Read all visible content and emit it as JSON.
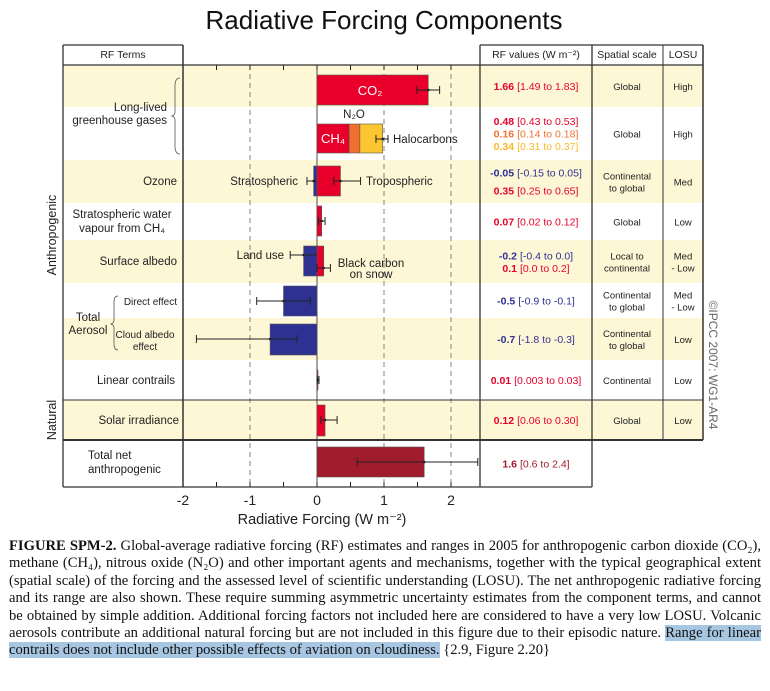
{
  "title": "Radiative Forcing Components",
  "header": {
    "rf_terms": "RF Terms",
    "rf_values": "RF values (W m⁻²)",
    "spatial_scale": "Spatial scale",
    "losu": "LOSU"
  },
  "groups": {
    "anthropogenic": "Anthropogenic",
    "natural": "Natural"
  },
  "terms": {
    "llghg": [
      "Long-lived",
      "greenhouse gases"
    ],
    "ozone": "Ozone",
    "strat_water": [
      "Stratospheric water",
      "vapour from CH₄"
    ],
    "surface_albedo": "Surface albedo",
    "total_aerosol": [
      "Total",
      "Aerosol"
    ],
    "direct_effect": "Direct effect",
    "cloud_albedo": [
      "Cloud albedo",
      "effect"
    ],
    "linear_contrails": "Linear contrails",
    "solar": "Solar irradiance",
    "total_net": [
      "Total net",
      "anthropogenic"
    ]
  },
  "bar_labels": {
    "co2": "CO₂",
    "n2o": "N₂O",
    "ch4": "CH₄",
    "halocarbons": "Halocarbons",
    "stratospheric": "Stratospheric",
    "tropospheric": "Tropospheric",
    "land_use": "Land use",
    "black_carbon": [
      "Black carbon",
      "on snow"
    ]
  },
  "table": [
    {
      "values": [
        {
          "v": "1.66",
          "r": "[1.49 to 1.83]",
          "color": "#e8002a"
        }
      ],
      "scale": [
        "Global"
      ],
      "losu": [
        "High"
      ]
    },
    {
      "values": [
        {
          "v": "0.48",
          "r": "[0.43 to 0.53]",
          "color": "#e8002a"
        },
        {
          "v": "0.16",
          "r": "[0.14 to 0.18]",
          "color": "#f07030"
        },
        {
          "v": "0.34",
          "r": "[0.31 to 0.37]",
          "color": "#fbb828"
        }
      ],
      "scale": [
        "Global"
      ],
      "losu": [
        "High"
      ]
    },
    {
      "values": [
        {
          "v": "-0.05",
          "r": "[-0.15 to 0.05]",
          "color": "#2e3192"
        },
        {
          "v": "0.35",
          "r": "[0.25 to 0.65]",
          "color": "#e8002a"
        }
      ],
      "scale": [
        "Continental",
        "to global"
      ],
      "losu": [
        "Med"
      ]
    },
    {
      "values": [
        {
          "v": "0.07",
          "r": "[0.02 to 0.12]",
          "color": "#e8002a"
        }
      ],
      "scale": [
        "Global"
      ],
      "losu": [
        "Low"
      ]
    },
    {
      "values": [
        {
          "v": "-0.2",
          "r": "[-0.4 to 0.0]",
          "color": "#2e3192"
        },
        {
          "v": "0.1",
          "r": "[0.0 to 0.2]",
          "color": "#e8002a"
        }
      ],
      "scale": [
        "Local to",
        "continental"
      ],
      "losu": [
        "Med",
        "- Low"
      ]
    },
    {
      "values": [
        {
          "v": "-0.5",
          "r": "[-0.9 to -0.1]",
          "color": "#2e3192"
        }
      ],
      "scale": [
        "Continental",
        "to global"
      ],
      "losu": [
        "Med",
        "- Low"
      ]
    },
    {
      "values": [
        {
          "v": "-0.7",
          "r": "[-1.8 to -0.3]",
          "color": "#2e3192"
        }
      ],
      "scale": [
        "Continental",
        "to global"
      ],
      "losu": [
        "Low"
      ]
    },
    {
      "values": [
        {
          "v": "0.01",
          "r": "[0.003 to 0.03]",
          "color": "#e8002a"
        }
      ],
      "scale": [
        "Continental"
      ],
      "losu": [
        "Low"
      ]
    },
    {
      "values": [
        {
          "v": "0.12",
          "r": "[0.06 to 0.30]",
          "color": "#e8002a"
        }
      ],
      "scale": [
        "Global"
      ],
      "losu": [
        "Low"
      ]
    },
    {
      "values": [
        {
          "v": "1.6",
          "r": "[0.6 to 2.4]",
          "color": "#a01c2c"
        }
      ],
      "scale": [],
      "losu": []
    }
  ],
  "copyright": "©IPCC  2007: WG1-AR4",
  "chart_data": {
    "type": "bar",
    "orientation": "horizontal",
    "title": "Radiative Forcing Components",
    "xlabel": "Radiative Forcing  (W m⁻²)",
    "xlim": [
      -2,
      2.43
    ],
    "xticks": [
      -2,
      -1,
      0,
      1,
      2
    ],
    "grid": "dashed vertical at -1, 1, 2",
    "colors": {
      "positive": "#e8002a",
      "negative": "#2e3192",
      "n2o": "#f07030",
      "halocarbons": "#fcc630",
      "total": "#a01c2c",
      "row_shade": "#fdf7d6"
    },
    "bars": [
      {
        "name": "CO2",
        "value": 1.66,
        "start": 0,
        "range": [
          1.49,
          1.83
        ],
        "color": "#e8002a"
      },
      {
        "name": "CH4",
        "value": 0.48,
        "start": 0,
        "color": "#e8002a"
      },
      {
        "name": "N2O",
        "value": 0.16,
        "start": 0.48,
        "color": "#f07030"
      },
      {
        "name": "Halocarbons",
        "value": 0.34,
        "start": 0.64,
        "range": [
          0.88,
          1.06
        ],
        "color": "#fcc630"
      },
      {
        "name": "Stratospheric ozone",
        "value": -0.05,
        "start": 0,
        "range": [
          -0.15,
          0.05
        ],
        "color": "#2e3192"
      },
      {
        "name": "Tropospheric ozone",
        "value": 0.35,
        "start": 0,
        "range": [
          0.25,
          0.65
        ],
        "color": "#e8002a"
      },
      {
        "name": "Stratospheric water vapour from CH4",
        "value": 0.07,
        "start": 0,
        "range": [
          0.02,
          0.12
        ],
        "color": "#e8002a"
      },
      {
        "name": "Land use",
        "value": -0.2,
        "start": 0,
        "range": [
          -0.4,
          0.0
        ],
        "color": "#2e3192"
      },
      {
        "name": "Black carbon on snow",
        "value": 0.1,
        "start": 0,
        "range": [
          0.0,
          0.2
        ],
        "color": "#e8002a"
      },
      {
        "name": "Aerosol direct effect",
        "value": -0.5,
        "start": 0,
        "range": [
          -0.9,
          -0.1
        ],
        "color": "#2e3192"
      },
      {
        "name": "Cloud albedo effect",
        "value": -0.7,
        "start": 0,
        "range": [
          -1.8,
          -0.3
        ],
        "color": "#2e3192"
      },
      {
        "name": "Linear contrails",
        "value": 0.01,
        "start": 0,
        "range": [
          0.003,
          0.03
        ],
        "color": "#e8002a"
      },
      {
        "name": "Solar irradiance",
        "value": 0.12,
        "start": 0,
        "range": [
          0.06,
          0.3
        ],
        "color": "#e8002a"
      },
      {
        "name": "Total net anthropogenic",
        "value": 1.6,
        "start": 0,
        "range": [
          0.6,
          2.4
        ],
        "color": "#a01c2c"
      }
    ]
  },
  "caption": {
    "label": "FIGURE SPM-2.",
    "text": " Global-average radiative forcing (RF) estimates and ranges in 2005 for anthropogenic carbon dioxide (CO₂), methane (CH₄), nitrous oxide (N₂O) and other important agents and mechanisms, together with the typical geographical extent (spatial scale) of the forcing and the assessed level of scientific understanding (LOSU). The net anthropogenic radiative forcing and its range are also shown. These require summing asymmetric uncertainty estimates from the component terms, and cannot be obtained by simple addition. Additional forcing factors not included here are considered to have a very low LOSU. Volcanic aerosols contribute an additional natural forcing but are not included in this figure due to their episodic nature. ",
    "highlighted": "Range for linear contrails does not include other possible effects of aviation on cloudiness.",
    "reference": "  {2.9, Figure 2.20}"
  }
}
